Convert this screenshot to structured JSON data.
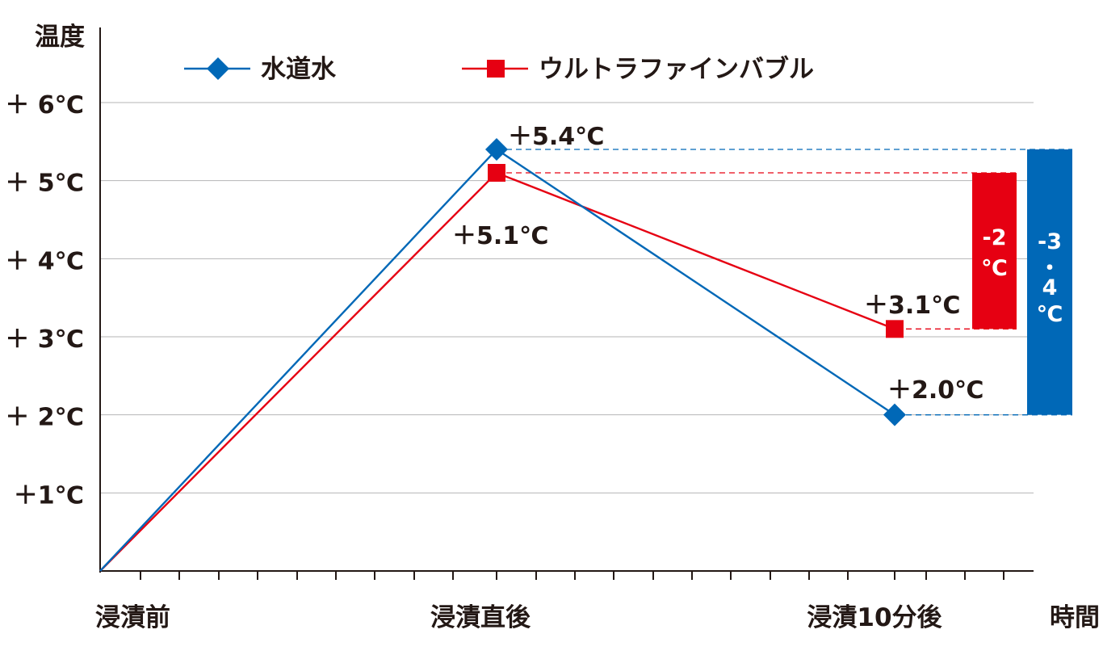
{
  "chart_data": {
    "type": "line",
    "y_title": "温度",
    "x_title": "時間",
    "y_ticks": [
      {
        "value": 1,
        "label": "＋1℃"
      },
      {
        "value": 2,
        "label": "＋ 2℃"
      },
      {
        "value": 3,
        "label": "＋ 3℃"
      },
      {
        "value": 4,
        "label": "＋ 4℃"
      },
      {
        "value": 5,
        "label": "＋ 5℃"
      },
      {
        "value": 6,
        "label": "＋ 6℃"
      }
    ],
    "ylim": [
      0,
      6
    ],
    "x_ticks": [
      "浸漬前",
      "浸漬直後",
      "浸漬10分後"
    ],
    "grid": true,
    "legend_position": "top",
    "series": [
      {
        "name": "水道水",
        "color": "#0068b7",
        "marker": "diamond",
        "values": [
          0,
          5.4,
          2.0
        ],
        "labels": [
          "",
          "＋5.4℃",
          "＋2.0℃"
        ]
      },
      {
        "name": "ウルトラファインバブル",
        "color": "#e60012",
        "marker": "square",
        "values": [
          0,
          5.1,
          3.1
        ],
        "labels": [
          "",
          "＋5.1℃",
          "＋3.1℃"
        ]
      }
    ],
    "annotations": [
      {
        "series": "ウルトラファインバブル",
        "color": "#e60012",
        "from": 5.1,
        "to": 3.1,
        "lines": [
          "-2",
          "℃"
        ]
      },
      {
        "series": "水道水",
        "color": "#0068b7",
        "from": 5.4,
        "to": 2.0,
        "lines": [
          "-3",
          "・",
          "4",
          "℃"
        ]
      }
    ]
  }
}
